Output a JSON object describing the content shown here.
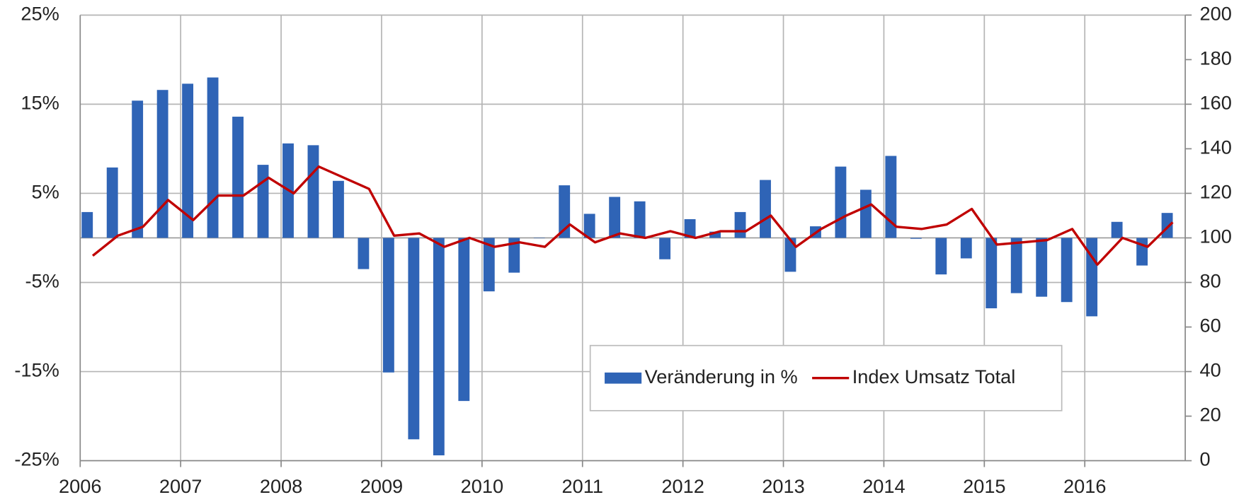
{
  "chart_data": {
    "type": "bar",
    "categories": [
      "2006",
      null,
      null,
      null,
      "2007",
      null,
      null,
      null,
      "2008",
      null,
      null,
      null,
      "2009",
      null,
      null,
      null,
      "2010",
      null,
      null,
      null,
      "2011",
      null,
      null,
      null,
      "2012",
      null,
      null,
      null,
      "2013",
      null,
      null,
      null,
      "2014",
      null,
      null,
      null,
      "2015",
      null,
      null,
      null,
      "2016",
      null,
      null,
      null
    ],
    "series": [
      {
        "name": "Veränderung in %",
        "type": "bar",
        "color": "#2f64b6",
        "values": [
          2.9,
          7.9,
          15.4,
          16.6,
          17.3,
          18.0,
          13.6,
          8.2,
          10.6,
          10.4,
          6.4,
          -3.5,
          -15.1,
          -22.6,
          -24.4,
          -18.3,
          -6.0,
          -3.9,
          0,
          5.9,
          2.7,
          4.6,
          4.1,
          -2.4,
          2.1,
          0.7,
          2.9,
          6.5,
          -3.8,
          1.3,
          8.0,
          5.4,
          9.2,
          -0.1,
          -4.1,
          -2.3,
          -7.9,
          -6.2,
          -6.6,
          -7.2,
          -8.8,
          1.8,
          -3.1,
          2.8
        ]
      },
      {
        "name": "Index Umsatz Total",
        "type": "line",
        "axis": "y2",
        "color": "#c00000",
        "values": [
          92,
          101,
          105,
          117,
          108,
          119,
          119,
          127,
          120,
          132,
          127,
          122,
          101,
          102,
          96,
          100,
          96,
          98,
          96,
          106,
          98,
          102,
          100,
          103,
          100,
          103,
          103,
          110,
          96,
          104,
          110,
          115,
          105,
          104,
          106,
          113,
          97,
          98,
          99,
          104,
          88,
          100,
          96,
          107
        ]
      }
    ],
    "ylim": [
      -25,
      25
    ],
    "yticks": [
      {
        "value": -25,
        "label": "-25%"
      },
      {
        "value": -15,
        "label": "-15%"
      },
      {
        "value": -5,
        "label": "-5%"
      },
      {
        "value": 5,
        "label": "5%"
      },
      {
        "value": 15,
        "label": "15%"
      },
      {
        "value": 25,
        "label": "25%"
      }
    ],
    "y2lim": [
      0,
      200
    ],
    "y2ticks": [
      0,
      20,
      40,
      60,
      80,
      100,
      120,
      140,
      160,
      180,
      200
    ],
    "grid": true,
    "legend": "lower center"
  }
}
